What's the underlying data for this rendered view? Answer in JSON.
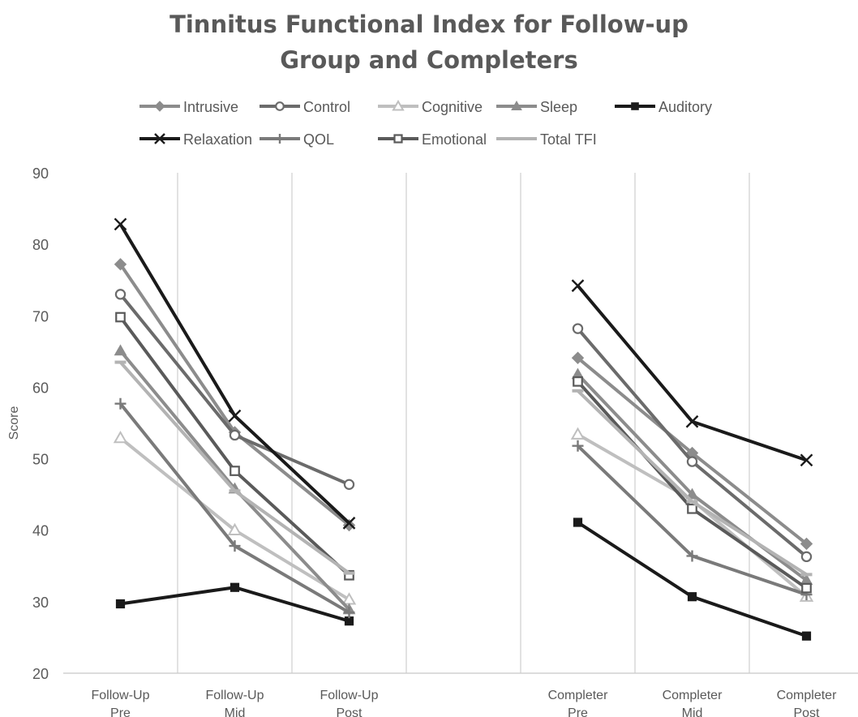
{
  "chart_data": {
    "type": "line",
    "title_lines": [
      "Tinnitus Functional Index for Follow-up",
      "Group and Completers"
    ],
    "ylabel": "Score",
    "ylim": [
      20,
      90
    ],
    "yticks": [
      20,
      30,
      40,
      50,
      60,
      70,
      80,
      90
    ],
    "grid": "vertical category separators",
    "legend_position": "top",
    "categories": [
      [
        "Follow-Up",
        "Pre"
      ],
      [
        "Follow-Up",
        "Mid"
      ],
      [
        "Follow-Up",
        "Post"
      ],
      [
        "",
        ""
      ],
      [
        "Completer",
        "Pre"
      ],
      [
        "Completer",
        "Mid"
      ],
      [
        "Completer",
        "Post"
      ]
    ],
    "groups": [
      [
        0,
        1,
        2
      ],
      [
        4,
        5,
        6
      ]
    ],
    "series": [
      {
        "name": "Intrusive",
        "color": "#8c8c8c",
        "marker": "diamond",
        "values": [
          77.2,
          53.7,
          40.7,
          null,
          64.1,
          50.8,
          38.1
        ]
      },
      {
        "name": "Control",
        "color": "#6b6b6b",
        "marker": "circle-open",
        "values": [
          73.0,
          53.3,
          46.4,
          null,
          68.2,
          49.6,
          36.3
        ]
      },
      {
        "name": "Cognitive",
        "color": "#bfbfbf",
        "marker": "triangle-open",
        "values": [
          52.9,
          40.0,
          30.3,
          null,
          53.4,
          44.2,
          30.7
        ]
      },
      {
        "name": "Sleep",
        "color": "#8c8c8c",
        "marker": "triangle",
        "values": [
          65.1,
          45.8,
          28.9,
          null,
          61.8,
          45.0,
          33.0
        ]
      },
      {
        "name": "Auditory",
        "color": "#1a1a1a",
        "marker": "square",
        "values": [
          29.7,
          32.0,
          27.3,
          null,
          41.1,
          30.7,
          25.2
        ]
      },
      {
        "name": "Relaxation",
        "color": "#1a1a1a",
        "marker": "x",
        "values": [
          82.8,
          56.0,
          41.0,
          null,
          74.2,
          55.2,
          49.8
        ]
      },
      {
        "name": "QOL",
        "color": "#7a7a7a",
        "marker": "plus",
        "values": [
          57.7,
          37.8,
          28.5,
          null,
          51.8,
          36.4,
          31.0
        ]
      },
      {
        "name": "Emotional",
        "color": "#5a5a5a",
        "marker": "square-open",
        "values": [
          69.8,
          48.3,
          33.7,
          null,
          60.8,
          43.0,
          31.9
        ]
      },
      {
        "name": "Total TFI",
        "color": "#b3b3b3",
        "marker": "dash",
        "values": [
          63.5,
          45.5,
          34.0,
          null,
          59.5,
          44.0,
          33.8
        ]
      }
    ]
  }
}
